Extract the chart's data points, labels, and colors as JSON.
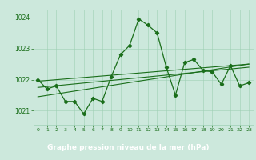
{
  "x": [
    0,
    1,
    2,
    3,
    4,
    5,
    6,
    7,
    8,
    9,
    10,
    11,
    12,
    13,
    14,
    15,
    16,
    17,
    18,
    19,
    20,
    21,
    22,
    23
  ],
  "y_main": [
    1022.0,
    1021.7,
    1021.8,
    1021.3,
    1021.3,
    1020.9,
    1021.4,
    1021.3,
    1022.1,
    1022.8,
    1023.1,
    1023.95,
    1023.75,
    1023.5,
    1022.4,
    1021.5,
    1022.55,
    1022.65,
    1022.3,
    1022.25,
    1021.85,
    1022.45,
    1021.8,
    1021.9
  ],
  "trend_line1_x": [
    0,
    23
  ],
  "trend_line1_y": [
    1021.45,
    1022.5
  ],
  "trend_line2_x": [
    0,
    23
  ],
  "trend_line2_y": [
    1021.75,
    1022.4
  ],
  "trend_line3_x": [
    0,
    23
  ],
  "trend_line3_y": [
    1021.95,
    1022.5
  ],
  "title": "Graphe pression niveau de la mer (hPa)",
  "xlim": [
    -0.5,
    23.5
  ],
  "ylim": [
    1020.55,
    1024.25
  ],
  "yticks": [
    1021,
    1022,
    1023,
    1024
  ],
  "xticks": [
    0,
    1,
    2,
    3,
    4,
    5,
    6,
    7,
    8,
    9,
    10,
    11,
    12,
    13,
    14,
    15,
    16,
    17,
    18,
    19,
    20,
    21,
    22,
    23
  ],
  "line_color": "#1a6e1a",
  "bg_color": "#cce8dc",
  "grid_color": "#9ecfb4",
  "text_color": "#1a6e1a",
  "title_bg": "#2d8c2d",
  "title_text_color": "#ffffff",
  "figwidth": 3.2,
  "figheight": 2.0,
  "dpi": 100
}
